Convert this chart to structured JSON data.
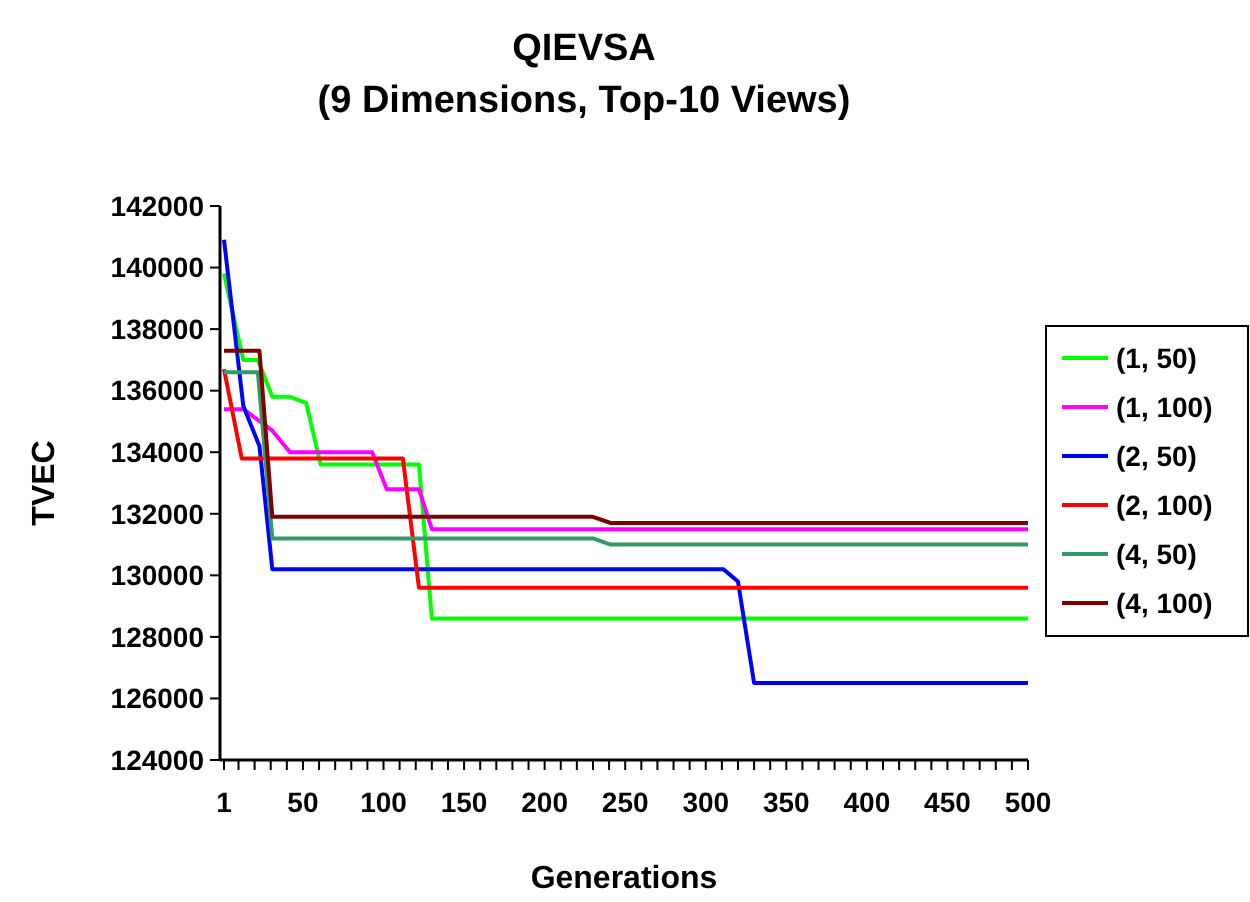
{
  "chart_data": {
    "type": "line",
    "title": "QIEVSA\n(9 Dimensions, Top-10 Views)",
    "xlabel": "Generations",
    "ylabel": "TVEC",
    "xlim": [
      1,
      500
    ],
    "ylim": [
      124000,
      142000
    ],
    "xticks": [
      1,
      {
        "value": 10,
        "label": null
      },
      {
        "value": 20,
        "label": null
      },
      {
        "value": 30,
        "label": null
      },
      {
        "value": 40,
        "label": null
      },
      50,
      {
        "value": 60,
        "label": null
      },
      {
        "value": 70,
        "label": null
      },
      {
        "value": 80,
        "label": null
      },
      {
        "value": 90,
        "label": null
      },
      100,
      {
        "value": 110,
        "label": null
      },
      {
        "value": 120,
        "label": null
      },
      {
        "value": 130,
        "label": null
      },
      {
        "value": 140,
        "label": null
      },
      150,
      {
        "value": 160,
        "label": null
      },
      {
        "value": 170,
        "label": null
      },
      {
        "value": 180,
        "label": null
      },
      {
        "value": 190,
        "label": null
      },
      200,
      {
        "value": 210,
        "label": null
      },
      {
        "value": 220,
        "label": null
      },
      {
        "value": 230,
        "label": null
      },
      {
        "value": 240,
        "label": null
      },
      250,
      {
        "value": 260,
        "label": null
      },
      {
        "value": 270,
        "label": null
      },
      {
        "value": 280,
        "label": null
      },
      {
        "value": 290,
        "label": null
      },
      300,
      {
        "value": 310,
        "label": null
      },
      {
        "value": 320,
        "label": null
      },
      {
        "value": 330,
        "label": null
      },
      {
        "value": 340,
        "label": null
      },
      350,
      {
        "value": 360,
        "label": null
      },
      {
        "value": 370,
        "label": null
      },
      {
        "value": 380,
        "label": null
      },
      {
        "value": 390,
        "label": null
      },
      400,
      {
        "value": 410,
        "label": null
      },
      {
        "value": 420,
        "label": null
      },
      {
        "value": 430,
        "label": null
      },
      {
        "value": 440,
        "label": null
      },
      450,
      {
        "value": 460,
        "label": null
      },
      {
        "value": 470,
        "label": null
      },
      {
        "value": 480,
        "label": null
      },
      {
        "value": 490,
        "label": null
      },
      500
    ],
    "yticks": [
      124000,
      126000,
      128000,
      130000,
      132000,
      134000,
      136000,
      138000,
      140000,
      142000
    ],
    "grid": false,
    "legend": "right",
    "marker": "none",
    "line_style": "solid",
    "series": [
      {
        "name": "(1, 50)",
        "color": "#00ff00",
        "x": [
          1,
          13,
          22,
          31,
          42,
          52,
          61,
          122,
          130,
          500
        ],
        "values": [
          139800,
          137000,
          137000,
          135800,
          135800,
          135600,
          133600,
          133600,
          128600,
          128600
        ]
      },
      {
        "name": "(1, 100)",
        "color": "#ff00ff",
        "x": [
          1,
          13,
          31,
          42,
          93,
          102,
          122,
          130,
          500
        ],
        "values": [
          135400,
          135400,
          134700,
          134000,
          134000,
          132800,
          132800,
          131500,
          131500
        ]
      },
      {
        "name": "(2, 50)",
        "color": "#0000ff",
        "x": [
          1,
          13,
          23,
          31,
          311,
          320,
          330,
          500
        ],
        "values": [
          140900,
          135500,
          134200,
          130200,
          130200,
          129800,
          126500,
          126500
        ]
      },
      {
        "name": "(2, 100)",
        "color": "#ff0000",
        "x": [
          1,
          12,
          112,
          122,
          500
        ],
        "values": [
          136700,
          133800,
          133800,
          129600,
          129600
        ]
      },
      {
        "name": "(4, 50)",
        "color": "#339966",
        "x": [
          1,
          22,
          31,
          230,
          241,
          500
        ],
        "values": [
          136600,
          136600,
          131200,
          131200,
          131000,
          131000
        ]
      },
      {
        "name": "(4, 100)",
        "color": "#800000",
        "x": [
          1,
          23,
          31,
          230,
          241,
          500
        ],
        "values": [
          137300,
          137300,
          131900,
          131900,
          131700,
          131700
        ]
      }
    ]
  }
}
